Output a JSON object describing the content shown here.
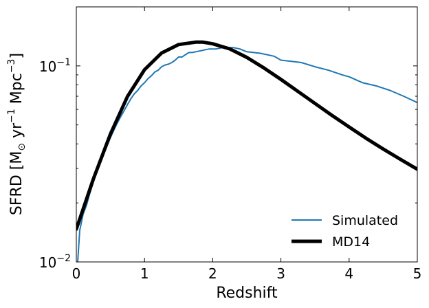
{
  "chart_data": {
    "type": "line",
    "xlabel": "Redshift",
    "ylabel": "SFRD [M⊙ yr⁻¹ Mpc⁻³]",
    "ylabel_parts": {
      "pre": "SFRD [M",
      "sub": "⊙",
      "mid1": " yr",
      "sup1": "−1",
      "mid2": " Mpc",
      "sup2": "−3",
      "post": "]"
    },
    "xlim": [
      0,
      5
    ],
    "ylim": [
      0.01,
      0.2
    ],
    "yscale": "log",
    "grid": false,
    "legend_position": "lower-right",
    "x_ticks": [
      {
        "value": 0,
        "label": "0"
      },
      {
        "value": 1,
        "label": "1"
      },
      {
        "value": 2,
        "label": "2"
      },
      {
        "value": 3,
        "label": "3"
      },
      {
        "value": 4,
        "label": "4"
      },
      {
        "value": 5,
        "label": "5"
      }
    ],
    "y_ticks": [
      {
        "value": 0.01,
        "base": "10",
        "exp": "−2"
      },
      {
        "value": 0.1,
        "base": "10",
        "exp": "−1"
      }
    ],
    "series": [
      {
        "name": "Simulated",
        "color": "#1f77b4",
        "x": [
          0.02,
          0.05,
          0.1,
          0.15,
          0.2,
          0.25,
          0.3,
          0.35,
          0.4,
          0.45,
          0.5,
          0.55,
          0.6,
          0.65,
          0.7,
          0.75,
          0.8,
          0.85,
          0.9,
          0.95,
          1.0,
          1.05,
          1.1,
          1.15,
          1.2,
          1.25,
          1.3,
          1.35,
          1.4,
          1.45,
          1.5,
          1.55,
          1.6,
          1.65,
          1.7,
          1.75,
          1.8,
          1.85,
          1.9,
          1.95,
          2.0,
          2.05,
          2.1,
          2.15,
          2.2,
          2.25,
          2.3,
          2.35,
          2.4,
          2.45,
          2.5,
          2.6,
          2.7,
          2.8,
          2.9,
          3.0,
          3.2,
          3.3,
          3.5,
          3.7,
          3.9,
          4.0,
          4.2,
          4.4,
          4.6,
          4.8,
          5.0
        ],
        "y": [
          0.01,
          0.0145,
          0.0175,
          0.0195,
          0.0225,
          0.0255,
          0.029,
          0.032,
          0.0355,
          0.039,
          0.043,
          0.047,
          0.051,
          0.055,
          0.059,
          0.0635,
          0.068,
          0.072,
          0.075,
          0.079,
          0.082,
          0.086,
          0.089,
          0.093,
          0.095,
          0.099,
          0.101,
          0.102,
          0.104,
          0.107,
          0.111,
          0.111,
          0.114,
          0.117,
          0.117,
          0.118,
          0.119,
          0.12,
          0.121,
          0.122,
          0.122,
          0.122,
          0.123,
          0.124,
          0.124,
          0.124,
          0.124,
          0.123,
          0.122,
          0.12,
          0.118,
          0.117,
          0.116,
          0.114,
          0.112,
          0.107,
          0.105,
          0.104,
          0.099,
          0.095,
          0.09,
          0.088,
          0.082,
          0.079,
          0.075,
          0.07,
          0.065
        ]
      },
      {
        "name": "MD14",
        "color": "#000000",
        "formula": "0.015*(1+z)^2.7/(1+((1+z)/2.9)^5.6)",
        "x": [
          0,
          0.25,
          0.5,
          0.75,
          1.0,
          1.25,
          1.5,
          1.75,
          1.85,
          2.0,
          2.25,
          2.5,
          2.75,
          3.0,
          3.25,
          3.5,
          3.75,
          4.0,
          4.25,
          4.5,
          4.75,
          5.0
        ],
        "y": [
          0.0147,
          0.0265,
          0.0449,
          0.0698,
          0.0956,
          0.1163,
          0.1285,
          0.1322,
          0.1323,
          0.1296,
          0.1221,
          0.1105,
          0.0976,
          0.0853,
          0.0741,
          0.0643,
          0.0559,
          0.0488,
          0.0427,
          0.0377,
          0.0334,
          0.0297
        ]
      }
    ]
  }
}
